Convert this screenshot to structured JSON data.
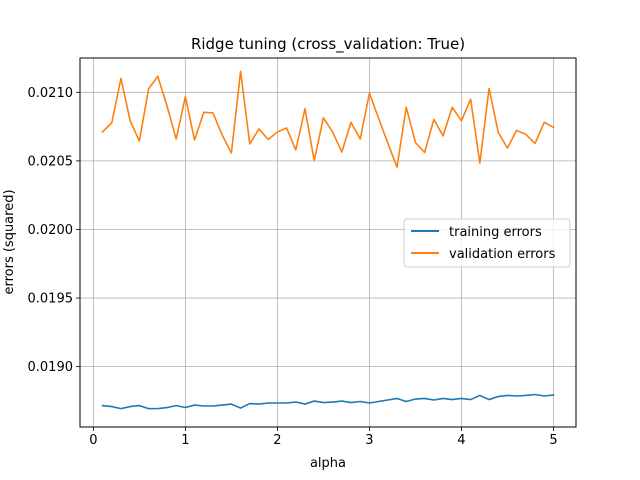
{
  "chart_data": {
    "type": "line",
    "title": "Ridge tuning (cross_validation: True)",
    "xlabel": "alpha",
    "ylabel": "errors (squared)",
    "xlim": [
      -0.145,
      5.245
    ],
    "ylim": [
      0.01856,
      0.02125
    ],
    "grid": true,
    "legend_position": "center-right",
    "xticks": [
      0,
      1,
      2,
      3,
      4,
      5
    ],
    "xtick_labels": [
      "0",
      "1",
      "2",
      "3",
      "4",
      "5"
    ],
    "yticks": [
      0.019,
      0.0195,
      0.02,
      0.0205,
      0.021
    ],
    "ytick_labels": [
      "0.0190",
      "0.0195",
      "0.0200",
      "0.0205",
      "0.0210"
    ],
    "x": [
      0.1,
      0.2,
      0.3,
      0.4,
      0.5,
      0.6,
      0.7,
      0.8,
      0.9,
      1.0,
      1.1,
      1.2,
      1.3,
      1.4,
      1.5,
      1.6,
      1.7,
      1.8,
      1.9,
      2.0,
      2.1,
      2.2,
      2.3,
      2.4,
      2.5,
      2.6,
      2.7,
      2.8,
      2.9,
      3.0,
      3.1,
      3.2,
      3.3,
      3.4,
      3.5,
      3.6,
      3.7,
      3.8,
      3.9,
      4.0,
      4.1,
      4.2,
      4.3,
      4.4,
      4.5,
      4.6,
      4.7,
      4.8,
      4.9,
      5.0
    ],
    "series": [
      {
        "name": "training errors",
        "color": "#1f77b4",
        "values": [
          0.018716,
          0.018709,
          0.018694,
          0.018709,
          0.018716,
          0.018694,
          0.018694,
          0.018702,
          0.018716,
          0.018702,
          0.01872,
          0.018713,
          0.018713,
          0.01872,
          0.018727,
          0.018698,
          0.018731,
          0.018727,
          0.018735,
          0.018735,
          0.018735,
          0.018742,
          0.018727,
          0.018749,
          0.018738,
          0.018742,
          0.018749,
          0.018738,
          0.018746,
          0.018735,
          0.018746,
          0.018757,
          0.018768,
          0.018746,
          0.018764,
          0.018768,
          0.018757,
          0.018768,
          0.01876,
          0.018768,
          0.01876,
          0.01879,
          0.01876,
          0.018782,
          0.01879,
          0.018786,
          0.01879,
          0.018797,
          0.018786,
          0.018793
        ]
      },
      {
        "name": "validation errors",
        "color": "#ff7f0e",
        "values": [
          0.020711,
          0.020777,
          0.021101,
          0.020792,
          0.020645,
          0.021024,
          0.021116,
          0.020902,
          0.02066,
          0.020968,
          0.020652,
          0.020854,
          0.02085,
          0.020689,
          0.020557,
          0.021153,
          0.020623,
          0.020733,
          0.020656,
          0.020711,
          0.02074,
          0.020579,
          0.02088,
          0.020502,
          0.020814,
          0.020711,
          0.020564,
          0.020781,
          0.02066,
          0.020994,
          0.02081,
          0.02063,
          0.020454,
          0.020891,
          0.020634,
          0.020561,
          0.020803,
          0.020682,
          0.020891,
          0.020792,
          0.02095,
          0.020484,
          0.021027,
          0.020708,
          0.020594,
          0.020722,
          0.020693,
          0.020627,
          0.020781,
          0.020744
        ]
      }
    ]
  }
}
